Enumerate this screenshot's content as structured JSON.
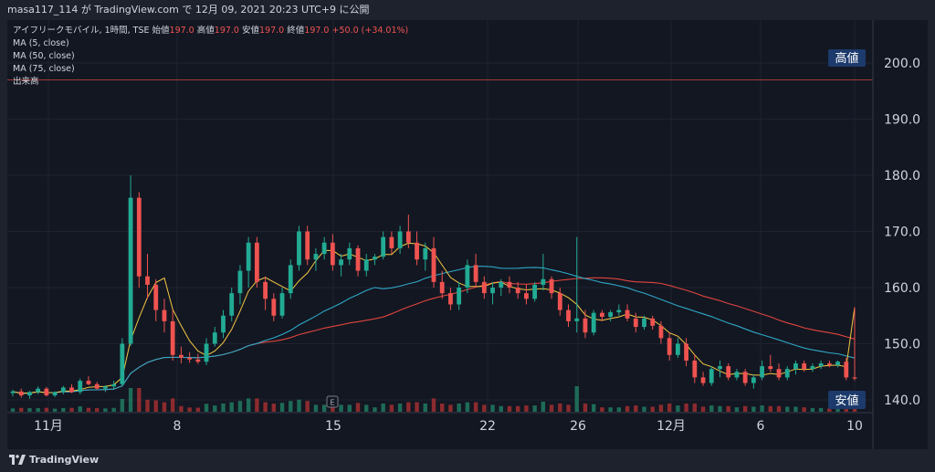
{
  "header": {
    "publish_line": "masa117_114 が TradingView.com で 12月 09, 2021 20:23 UTC+9 に公開"
  },
  "legend": {
    "symbol_line": "アイフリークモバイル, 1時間, TSE",
    "open_label": "始値",
    "open": "197.0",
    "high_label": "高値",
    "high": "197.0",
    "low_label": "安値",
    "low": "197.0",
    "close_label": "終値",
    "close": "197.0",
    "change": "+50.0 (+34.01%)",
    "ma5": "MA (5, close)",
    "ma50": "MA (50, close)",
    "ma75": "MA (75, close)",
    "volume": "出来高"
  },
  "markers": {
    "high_label": "高値",
    "low_label": "安値",
    "event": "E"
  },
  "footer": {
    "brand": "TradingView"
  },
  "colors": {
    "up": "#26a69a",
    "down": "#ef5350",
    "up_bright": "#22ab94",
    "ma5": "#f5c843",
    "ma50": "#2ea8c7",
    "ma75": "#e0453e",
    "tag_bg": "#1c3a6b",
    "bg": "#131722"
  },
  "chart_data": {
    "type": "candlestick",
    "y_ticks": [
      "200.0",
      "190.0",
      "180.0",
      "170.0",
      "160.0",
      "150.0",
      "140.0"
    ],
    "ylim": [
      138,
      205
    ],
    "x_labels": [
      "11月",
      "8",
      "15",
      "22",
      "26",
      "12月",
      "6",
      "10"
    ],
    "high_line": 197.0,
    "candles": [
      [
        141.2,
        141.8,
        140.6,
        141.5
      ],
      [
        141.5,
        142.0,
        140.4,
        140.8
      ],
      [
        140.8,
        141.6,
        140.2,
        141.4
      ],
      [
        141.4,
        142.4,
        141.0,
        142.0
      ],
      [
        142.0,
        142.3,
        140.6,
        140.8
      ],
      [
        140.8,
        141.5,
        140.5,
        141.4
      ],
      [
        141.4,
        142.5,
        141.0,
        142.2
      ],
      [
        142.2,
        142.8,
        141.2,
        141.4
      ],
      [
        141.4,
        143.8,
        141.0,
        143.4
      ],
      [
        143.4,
        144.2,
        142.6,
        142.8
      ],
      [
        142.8,
        143.2,
        141.8,
        142.0
      ],
      [
        142.0,
        142.6,
        141.4,
        142.4
      ],
      [
        142.4,
        143.4,
        141.8,
        142.8
      ],
      [
        142.8,
        151.0,
        142.4,
        150.0
      ],
      [
        150.0,
        180.0,
        149.6,
        176.0
      ],
      [
        176.0,
        177.0,
        160.0,
        162.0
      ],
      [
        162.0,
        166.0,
        158.0,
        160.5
      ],
      [
        160.5,
        161.5,
        154.0,
        156.0
      ],
      [
        156.0,
        158.0,
        152.0,
        154.0
      ],
      [
        154.0,
        156.0,
        147.0,
        148.0
      ],
      [
        148.0,
        149.5,
        146.5,
        147.5
      ],
      [
        147.5,
        148.5,
        146.6,
        147.2
      ],
      [
        147.2,
        148.2,
        146.4,
        146.8
      ],
      [
        146.8,
        151.0,
        146.2,
        150.0
      ],
      [
        150.0,
        153.0,
        149.5,
        152.0
      ],
      [
        152.0,
        156.0,
        151.0,
        155.0
      ],
      [
        155.0,
        160.0,
        154.0,
        159.0
      ],
      [
        159.0,
        164.0,
        157.0,
        163.0
      ],
      [
        163.0,
        169.0,
        160.0,
        168.0
      ],
      [
        168.0,
        169.0,
        160.0,
        161.0
      ],
      [
        161.0,
        162.0,
        156.0,
        158.0
      ],
      [
        158.0,
        159.0,
        154.0,
        155.0
      ],
      [
        155.0,
        160.0,
        154.5,
        159.0
      ],
      [
        159.0,
        165.0,
        158.0,
        164.0
      ],
      [
        164.0,
        171.0,
        163.0,
        170.0
      ],
      [
        170.0,
        171.0,
        164.0,
        165.0
      ],
      [
        165.0,
        167.0,
        163.0,
        166.0
      ],
      [
        166.0,
        169.0,
        165.0,
        168.0
      ],
      [
        168.0,
        169.5,
        163.0,
        164.0
      ],
      [
        164.0,
        166.0,
        162.0,
        165.0
      ],
      [
        165.0,
        168.0,
        164.0,
        167.0
      ],
      [
        167.0,
        167.5,
        162.0,
        163.0
      ],
      [
        163.0,
        166.0,
        162.0,
        165.0
      ],
      [
        165.0,
        166.0,
        164.0,
        165.5
      ],
      [
        165.5,
        170.0,
        165.0,
        169.0
      ],
      [
        169.0,
        170.0,
        166.0,
        167.0
      ],
      [
        167.0,
        171.0,
        166.0,
        170.0
      ],
      [
        170.0,
        173.0,
        167.0,
        168.0
      ],
      [
        168.0,
        170.0,
        164.0,
        165.0
      ],
      [
        165.0,
        168.0,
        163.0,
        167.0
      ],
      [
        167.0,
        169.0,
        160.0,
        161.0
      ],
      [
        161.0,
        163.0,
        158.0,
        159.0
      ],
      [
        159.0,
        160.0,
        156.0,
        157.0
      ],
      [
        157.0,
        161.0,
        156.0,
        160.0
      ],
      [
        160.0,
        165.0,
        159.0,
        164.0
      ],
      [
        164.0,
        166.0,
        160.0,
        161.0
      ],
      [
        161.0,
        162.0,
        158.0,
        159.0
      ],
      [
        159.0,
        161.0,
        157.0,
        160.0
      ],
      [
        160.0,
        161.5,
        158.5,
        161.0
      ],
      [
        161.0,
        162.0,
        159.0,
        160.0
      ],
      [
        160.0,
        161.0,
        158.0,
        159.0
      ],
      [
        159.0,
        160.5,
        157.0,
        158.0
      ],
      [
        158.0,
        161.0,
        157.5,
        160.5
      ],
      [
        160.5,
        166.0,
        159.5,
        161.5
      ],
      [
        161.5,
        162.0,
        158.0,
        159.0
      ],
      [
        159.0,
        160.0,
        155.0,
        156.0
      ],
      [
        156.0,
        157.0,
        153.0,
        154.0
      ],
      [
        154.0,
        169.0,
        152.0,
        154.5
      ],
      [
        154.5,
        156.0,
        151.0,
        152.0
      ],
      [
        152.0,
        156.0,
        151.5,
        155.5
      ],
      [
        155.5,
        156.0,
        154.0,
        154.8
      ],
      [
        154.8,
        156.0,
        154.0,
        155.6
      ],
      [
        155.6,
        157.0,
        155.0,
        156.0
      ],
      [
        156.0,
        157.0,
        154.0,
        154.5
      ],
      [
        154.5,
        155.5,
        152.0,
        153.0
      ],
      [
        153.0,
        155.0,
        152.5,
        154.5
      ],
      [
        154.5,
        155.0,
        152.5,
        153.2
      ],
      [
        153.2,
        154.0,
        150.0,
        151.0
      ],
      [
        151.0,
        152.0,
        147.0,
        148.0
      ],
      [
        148.0,
        151.0,
        147.5,
        150.0
      ],
      [
        150.0,
        151.0,
        146.0,
        147.0
      ],
      [
        147.0,
        148.0,
        143.0,
        144.0
      ],
      [
        144.0,
        145.0,
        142.5,
        143.0
      ],
      [
        143.0,
        146.0,
        142.5,
        145.5
      ],
      [
        145.5,
        147.0,
        144.0,
        146.0
      ],
      [
        146.0,
        146.5,
        143.5,
        144.0
      ],
      [
        144.0,
        145.5,
        143.5,
        145.0
      ],
      [
        145.0,
        145.5,
        142.5,
        143.0
      ],
      [
        143.0,
        144.5,
        142.0,
        144.0
      ],
      [
        144.0,
        147.0,
        143.5,
        146.0
      ],
      [
        146.0,
        148.0,
        145.0,
        145.5
      ],
      [
        145.5,
        146.5,
        143.5,
        144.0
      ],
      [
        144.0,
        146.0,
        143.5,
        145.5
      ],
      [
        145.5,
        147.0,
        144.5,
        146.5
      ],
      [
        146.5,
        147.0,
        145.0,
        145.5
      ],
      [
        145.5,
        146.5,
        145.0,
        146.0
      ],
      [
        146.0,
        147.0,
        145.5,
        146.5
      ],
      [
        146.5,
        147.0,
        145.8,
        146.2
      ],
      [
        146.2,
        147.0,
        145.8,
        146.8
      ],
      [
        146.8,
        147.5,
        143.5,
        144.0
      ],
      [
        144.0,
        156.5,
        143.5,
        143.8
      ]
    ]
  }
}
